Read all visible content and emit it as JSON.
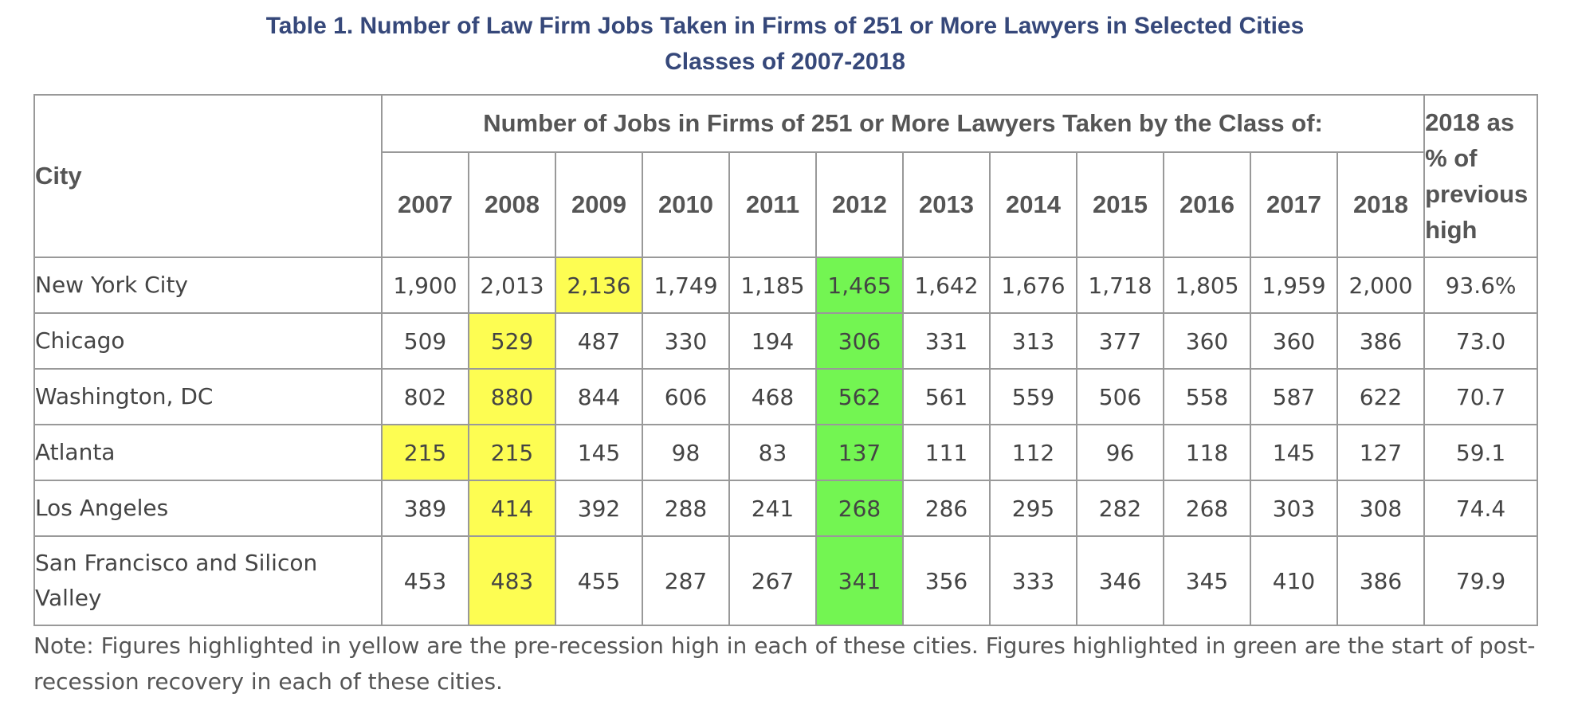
{
  "chart_data": {
    "type": "table",
    "title": "Table 1. Number of Law Firm Jobs Taken in Firms of 251 or More Lawyers in Selected Cities",
    "subtitle": "Classes of 2007-2018",
    "header": {
      "city": "City",
      "group": "Number of Jobs in Firms of 251 or More Lawyers Taken by the Class of:",
      "pct": "2018 as % of previous high",
      "years": [
        "2007",
        "2008",
        "2009",
        "2010",
        "2011",
        "2012",
        "2013",
        "2014",
        "2015",
        "2016",
        "2017",
        "2018"
      ]
    },
    "highlight_colors": {
      "yellow": "#fdfd52",
      "green": "#73f552"
    },
    "rows": [
      {
        "city": "New York City",
        "values": [
          "1,900",
          "2,013",
          "2,136",
          "1,749",
          "1,185",
          "1,465",
          "1,642",
          "1,676",
          "1,718",
          "1,805",
          "1,959",
          "2,000"
        ],
        "pct": "93.6%",
        "yellow": [
          2
        ],
        "green": [
          5
        ]
      },
      {
        "city": "Chicago",
        "values": [
          "509",
          "529",
          "487",
          "330",
          "194",
          "306",
          "331",
          "313",
          "377",
          "360",
          "360",
          "386"
        ],
        "pct": "73.0",
        "yellow": [
          1
        ],
        "green": [
          5
        ]
      },
      {
        "city": "Washington, DC",
        "values": [
          "802",
          "880",
          "844",
          "606",
          "468",
          "562",
          "561",
          "559",
          "506",
          "558",
          "587",
          "622"
        ],
        "pct": "70.7",
        "yellow": [
          1
        ],
        "green": [
          5
        ]
      },
      {
        "city": "Atlanta",
        "values": [
          "215",
          "215",
          "145",
          "98",
          "83",
          "137",
          "111",
          "112",
          "96",
          "118",
          "145",
          "127"
        ],
        "pct": "59.1",
        "yellow": [
          0,
          1
        ],
        "green": [
          5
        ]
      },
      {
        "city": "Los Angeles",
        "values": [
          "389",
          "414",
          "392",
          "288",
          "241",
          "268",
          "286",
          "295",
          "282",
          "268",
          "303",
          "308"
        ],
        "pct": "74.4",
        "yellow": [
          1
        ],
        "green": [
          5
        ]
      },
      {
        "city": "San Francisco and Silicon Valley",
        "values": [
          "453",
          "483",
          "455",
          "287",
          "267",
          "341",
          "356",
          "333",
          "346",
          "345",
          "410",
          "386"
        ],
        "pct": "79.9",
        "yellow": [
          1
        ],
        "green": [
          5
        ]
      }
    ],
    "note": "Note: Figures highlighted in yellow are the pre-recession high in each of these cities. Figures highlighted in green are the start of post-recession recovery in each of these cities."
  }
}
